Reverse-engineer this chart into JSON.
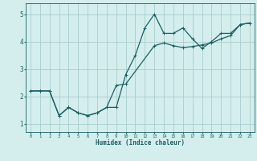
{
  "xlabel": "Humidex (Indice chaleur)",
  "bg_color": "#d4eeee",
  "grid_color": "#aacccc",
  "line_color": "#1a6060",
  "xlim": [
    -0.5,
    23.5
  ],
  "ylim": [
    0.7,
    5.4
  ],
  "xticks": [
    0,
    1,
    2,
    3,
    4,
    5,
    6,
    7,
    8,
    9,
    10,
    11,
    12,
    13,
    14,
    15,
    16,
    17,
    18,
    19,
    20,
    21,
    22,
    23
  ],
  "yticks": [
    1,
    2,
    3,
    4,
    5
  ],
  "line1_x": [
    0,
    1,
    2,
    3,
    4,
    5,
    6,
    7,
    8,
    9,
    10,
    11,
    12,
    13,
    14,
    15,
    16,
    17,
    18,
    19,
    20,
    21,
    22,
    23
  ],
  "line1_y": [
    2.2,
    2.2,
    2.2,
    1.3,
    1.6,
    1.4,
    1.3,
    1.4,
    1.6,
    1.6,
    2.8,
    3.5,
    4.5,
    5.0,
    4.3,
    4.3,
    4.5,
    4.1,
    3.75,
    4.0,
    4.3,
    4.3,
    4.62,
    4.68
  ],
  "line2_x": [
    0,
    1,
    2,
    3,
    4,
    5,
    6,
    7,
    8,
    9,
    10,
    13,
    14,
    15,
    16,
    17,
    18,
    19,
    20,
    21,
    22,
    23
  ],
  "line2_y": [
    2.2,
    2.2,
    2.2,
    1.3,
    1.6,
    1.4,
    1.3,
    1.4,
    1.6,
    2.4,
    2.45,
    3.85,
    3.95,
    3.85,
    3.78,
    3.82,
    3.88,
    3.95,
    4.1,
    4.22,
    4.62,
    4.68
  ],
  "marker_size": 2.5,
  "line_width": 0.9
}
